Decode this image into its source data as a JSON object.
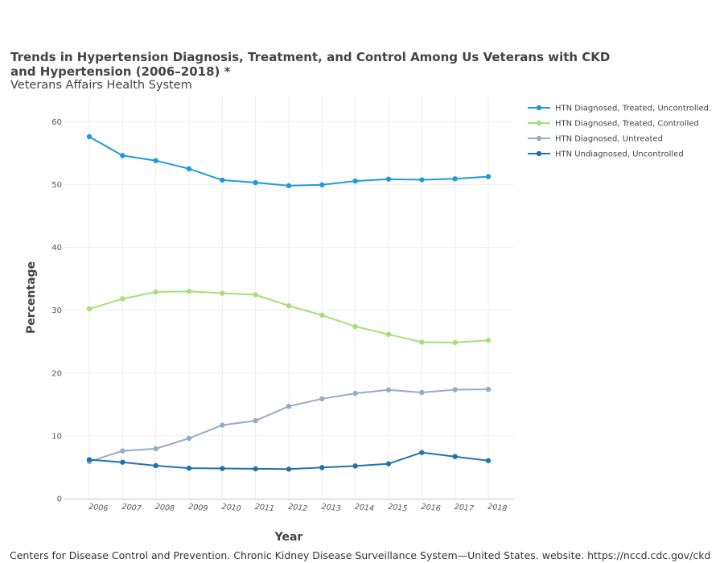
{
  "header": {
    "title": "Trends in Hypertension Diagnosis, Treatment, and Control Among Us Veterans with CKD and Hypertension (2006–2018) *",
    "subtitle": "Veterans Affairs Health System"
  },
  "footer": {
    "source": "Centers for Disease Control and Prevention. Chronic Kidney Disease Surveillance System—United States. website. https://nccd.cdc.gov/ckd"
  },
  "chart_data": {
    "type": "line",
    "title": "Trends in Hypertension Diagnosis, Treatment, and Control Among Us Veterans with CKD and Hypertension (2006–2018) *",
    "subtitle": "Veterans Affairs Health System",
    "xlabel": "Year",
    "ylabel": "Percentage",
    "ylim": [
      0,
      64
    ],
    "yticks": [
      0,
      10,
      20,
      30,
      40,
      50,
      60
    ],
    "grid": true,
    "legend_position": "top-right",
    "x": [
      "2006",
      "2007",
      "2008",
      "2009",
      "2010",
      "2011",
      "2012",
      "2013",
      "2014",
      "2015",
      "2016",
      "2017",
      "2018"
    ],
    "series": [
      {
        "name": "HTN Diagnosed, Treated, Uncontrolled",
        "color": "#1f9bd9",
        "values": [
          57.6,
          54.6,
          53.8,
          52.5,
          50.7,
          50.3,
          49.8,
          49.95,
          50.55,
          50.85,
          50.75,
          50.9,
          51.25
        ]
      },
      {
        "name": "HTN Diagnosed, Treated, Controlled",
        "color": "#a6e07a",
        "values": [
          30.2,
          31.8,
          32.9,
          33.0,
          32.7,
          32.45,
          30.7,
          29.2,
          27.4,
          26.15,
          24.9,
          24.85,
          25.2
        ]
      },
      {
        "name": "HTN Diagnosed, Untreated",
        "color": "#98abc5",
        "values": [
          5.9,
          7.6,
          7.95,
          9.6,
          11.7,
          12.4,
          14.7,
          15.9,
          16.75,
          17.3,
          16.9,
          17.35,
          17.4
        ]
      },
      {
        "name": "HTN Undiagnosed, Uncontrolled",
        "color": "#2272b0",
        "values": [
          6.2,
          5.8,
          5.25,
          4.85,
          4.8,
          4.75,
          4.7,
          4.95,
          5.2,
          5.55,
          7.35,
          6.7,
          6.05
        ]
      }
    ]
  }
}
